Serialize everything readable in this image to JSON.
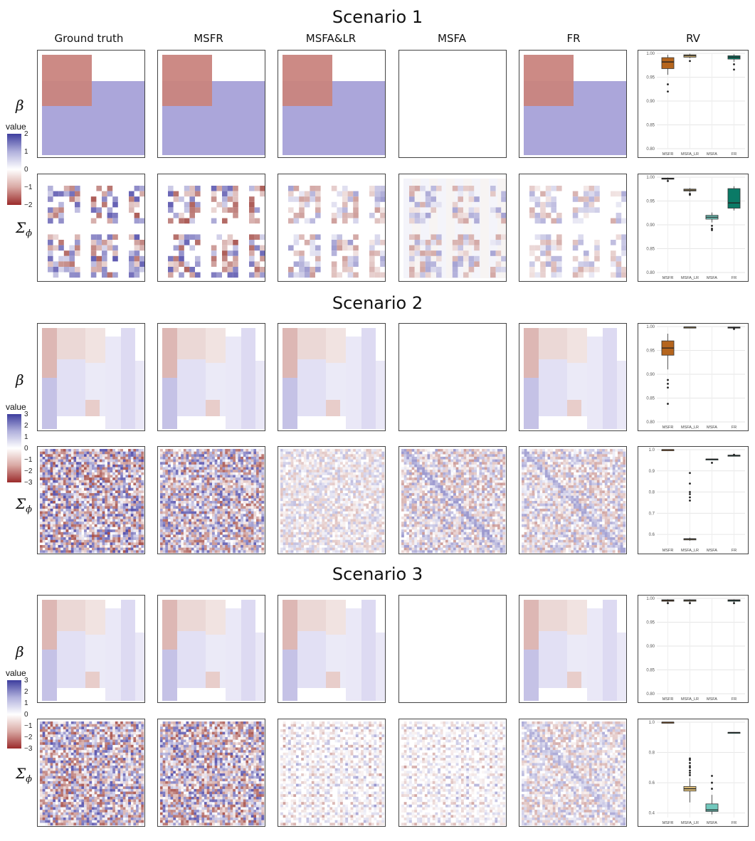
{
  "scenarios": [
    {
      "title": "Scenario 1"
    },
    {
      "title": "Scenario 2"
    },
    {
      "title": "Scenario 3"
    }
  ],
  "columns": [
    "Ground truth",
    "MSFR",
    "MSFA&LR",
    "MSFA",
    "FR",
    "RV"
  ],
  "row_labels": {
    "beta": "β",
    "sigma": "Σ",
    "sigma_sub": "ϕ"
  },
  "legends": [
    {
      "title": "value",
      "ticks": [
        "2",
        "1",
        "0",
        "−1",
        "−2"
      ]
    },
    {
      "title": "value",
      "ticks": [
        "3",
        "2",
        "1",
        "0",
        "−1",
        "−2",
        "−3"
      ]
    },
    {
      "title": "value",
      "ticks": [
        "3",
        "2",
        "1",
        "0",
        "−1",
        "−2",
        "−3"
      ]
    }
  ],
  "colors": {
    "high": "#3d3d9e",
    "mid": "#ffffff",
    "low": "#9b2b2b",
    "msfr": "#b5651d",
    "msfa_lr": "#e3c27a",
    "msfa": "#72c8bd",
    "fr": "#0a7a66"
  },
  "chart_data": [
    {
      "type": "box",
      "scenario": "Scenario 1",
      "panel": "beta RV",
      "categories": [
        "MSFR",
        "MSFA_LR",
        "MSFA",
        "FR"
      ],
      "ylim": [
        0.8,
        1.0
      ],
      "yticks": [
        "0.80",
        "0.85",
        "0.90",
        "0.95",
        "1.00"
      ],
      "boxes": [
        {
          "q1": 0.968,
          "median": 0.982,
          "q3": 0.991,
          "lo": 0.955,
          "hi": 0.997,
          "outliers": [
            0.935,
            0.92
          ]
        },
        {
          "q1": 0.992,
          "median": 0.995,
          "q3": 0.997,
          "lo": 0.99,
          "hi": 0.999,
          "outliers": [
            0.984
          ]
        },
        null,
        {
          "q1": 0.988,
          "median": 0.992,
          "q3": 0.995,
          "lo": 0.982,
          "hi": 0.998,
          "outliers": [
            0.977,
            0.966
          ]
        }
      ]
    },
    {
      "type": "box",
      "scenario": "Scenario 1",
      "panel": "Sigma RV",
      "categories": [
        "MSFR",
        "MSFA_LR",
        "MSFA",
        "FR"
      ],
      "ylim": [
        0.8,
        1.0
      ],
      "yticks": [
        "0.80",
        "0.85",
        "0.90",
        "0.95",
        "1.00"
      ],
      "boxes": [
        {
          "q1": 0.996,
          "median": 0.997,
          "q3": 0.998,
          "lo": 0.994,
          "hi": 0.999,
          "outliers": [
            0.992
          ]
        },
        {
          "q1": 0.971,
          "median": 0.973,
          "q3": 0.975,
          "lo": 0.968,
          "hi": 0.977,
          "outliers": [
            0.965,
            0.963
          ]
        },
        {
          "q1": 0.912,
          "median": 0.916,
          "q3": 0.92,
          "lo": 0.905,
          "hi": 0.926,
          "outliers": [
            0.898,
            0.892,
            0.889
          ]
        },
        {
          "q1": 0.935,
          "median": 0.946,
          "q3": 0.976,
          "lo": 0.93,
          "hi": 0.981,
          "outliers": []
        }
      ]
    },
    {
      "type": "box",
      "scenario": "Scenario 2",
      "panel": "beta RV",
      "categories": [
        "MSFR",
        "MSFA_LR",
        "MSFA",
        "FR"
      ],
      "ylim": [
        0.8,
        1.0
      ],
      "yticks": [
        "0.80",
        "0.85",
        "0.90",
        "0.95",
        "1.00"
      ],
      "boxes": [
        {
          "q1": 0.94,
          "median": 0.955,
          "q3": 0.97,
          "lo": 0.91,
          "hi": 0.985,
          "outliers": [
            0.888,
            0.88,
            0.872,
            0.838
          ]
        },
        {
          "q1": 0.998,
          "median": 0.999,
          "q3": 0.999,
          "lo": 0.997,
          "hi": 1.0,
          "outliers": []
        },
        null,
        {
          "q1": 0.997,
          "median": 0.998,
          "q3": 0.999,
          "lo": 0.996,
          "hi": 1.0,
          "outliers": [
            0.995
          ]
        }
      ]
    },
    {
      "type": "box",
      "scenario": "Scenario 2",
      "panel": "Sigma RV",
      "categories": [
        "MSFR",
        "MSFA_LR",
        "MSFA",
        "FR"
      ],
      "ylim": [
        0.55,
        1.0
      ],
      "yticks": [
        "0.6",
        "0.7",
        "0.8",
        "0.9",
        "1.0"
      ],
      "boxes": [
        {
          "q1": 0.999,
          "median": 1.0,
          "q3": 1.0,
          "lo": 0.998,
          "hi": 1.0,
          "outliers": []
        },
        {
          "q1": 0.574,
          "median": 0.578,
          "q3": 0.58,
          "lo": 0.57,
          "hi": 0.585,
          "outliers": [
            0.89,
            0.84,
            0.8,
            0.79,
            0.775,
            0.76
          ]
        },
        {
          "q1": 0.954,
          "median": 0.955,
          "q3": 0.956,
          "lo": 0.953,
          "hi": 0.957,
          "outliers": [
            0.938
          ]
        },
        {
          "q1": 0.972,
          "median": 0.973,
          "q3": 0.974,
          "lo": 0.971,
          "hi": 0.975,
          "outliers": [
            0.976
          ]
        }
      ]
    },
    {
      "type": "box",
      "scenario": "Scenario 3",
      "panel": "beta RV",
      "categories": [
        "MSFR",
        "MSFA_LR",
        "MSFA",
        "FR"
      ],
      "ylim": [
        0.8,
        1.0
      ],
      "yticks": [
        "0.80",
        "0.85",
        "0.90",
        "0.95",
        "1.00"
      ],
      "boxes": [
        {
          "q1": 0.994,
          "median": 0.996,
          "q3": 0.997,
          "lo": 0.992,
          "hi": 0.998,
          "outliers": [
            0.99
          ]
        },
        {
          "q1": 0.994,
          "median": 0.996,
          "q3": 0.997,
          "lo": 0.992,
          "hi": 0.998,
          "outliers": [
            0.99
          ]
        },
        null,
        {
          "q1": 0.994,
          "median": 0.996,
          "q3": 0.997,
          "lo": 0.992,
          "hi": 0.998,
          "outliers": [
            0.99
          ]
        }
      ]
    },
    {
      "type": "box",
      "scenario": "Scenario 3",
      "panel": "Sigma RV",
      "categories": [
        "MSFR",
        "MSFA_LR",
        "MSFA",
        "FR"
      ],
      "ylim": [
        0.37,
        1.0
      ],
      "yticks": [
        "0.4",
        "0.6",
        "0.8",
        "1.0"
      ],
      "boxes": [
        {
          "q1": 0.999,
          "median": 1.0,
          "q3": 1.0,
          "lo": 0.998,
          "hi": 1.0,
          "outliers": []
        },
        {
          "q1": 0.545,
          "median": 0.56,
          "q3": 0.575,
          "lo": 0.47,
          "hi": 0.63,
          "outliers": [
            0.76,
            0.75,
            0.73,
            0.71,
            0.7,
            0.68,
            0.665,
            0.65
          ]
        },
        {
          "q1": 0.41,
          "median": 0.42,
          "q3": 0.46,
          "lo": 0.39,
          "hi": 0.52,
          "outliers": [
            0.645,
            0.6,
            0.56
          ]
        },
        {
          "q1": 0.931,
          "median": 0.932,
          "q3": 0.933,
          "lo": 0.93,
          "hi": 0.934,
          "outliers": []
        }
      ]
    }
  ]
}
